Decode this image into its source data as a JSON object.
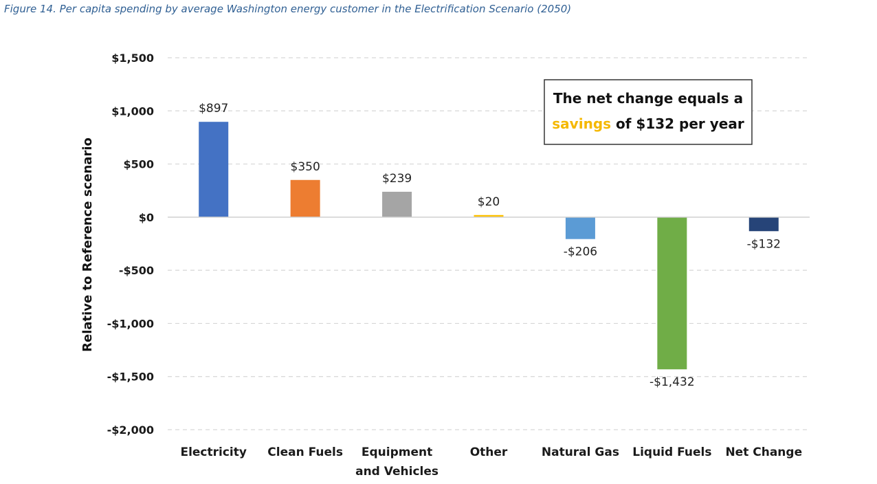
{
  "caption": {
    "figure_label": "Figure 14.",
    "text": "Per capita spending by average Washington energy customer in the Electrification Scenario (2050)"
  },
  "annotation": {
    "line1": "The net change equals a",
    "line2_highlight": "savings",
    "line2_rest": " of $132 per year",
    "highlight_color": "#f5b800"
  },
  "chart_data": {
    "type": "bar",
    "title": "",
    "ylabel": "Relative to Reference scenario",
    "xlabel": "",
    "ylim": [
      -2000,
      1500
    ],
    "yticks": [
      1500,
      1000,
      500,
      0,
      -500,
      -1000,
      -1500,
      -2000
    ],
    "ytick_labels": [
      "$1,500",
      "$1,000",
      "$500",
      "$0",
      "-$500",
      "-$1,000",
      "-$1,500",
      "-$2,000"
    ],
    "grid": true,
    "legend": "none",
    "categories": [
      [
        "Electricity"
      ],
      [
        "Clean Fuels"
      ],
      [
        "Equipment",
        "and Vehicles"
      ],
      [
        "Other"
      ],
      [
        "Natural Gas"
      ],
      [
        "Liquid Fuels"
      ],
      [
        "Net Change"
      ]
    ],
    "values": [
      897,
      350,
      239,
      20,
      -206,
      -1432,
      -132
    ],
    "data_labels": [
      "$897",
      "$350",
      "$239",
      "$20",
      "-$206",
      "-$1,432",
      "-$132"
    ],
    "colors": [
      "#4472c4",
      "#ed7d31",
      "#a5a5a5",
      "#ffc000",
      "#5b9bd5",
      "#70ad47",
      "#264478"
    ]
  }
}
